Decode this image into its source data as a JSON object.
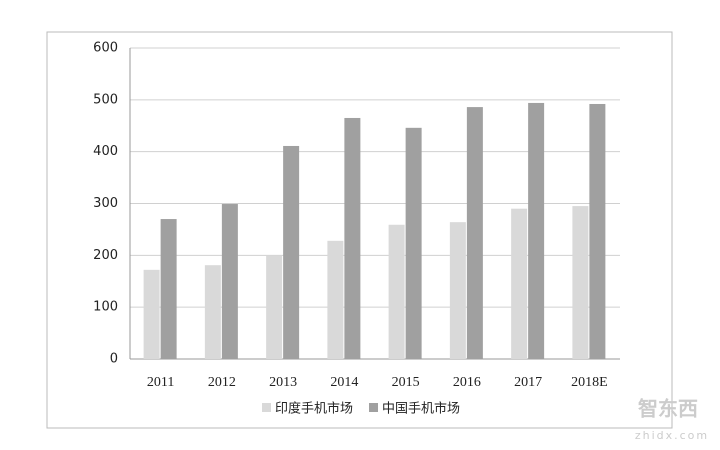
{
  "chart_data": {
    "type": "bar",
    "categories": [
      "2011",
      "2012",
      "2013",
      "2014",
      "2015",
      "2016",
      "2017",
      "2018E"
    ],
    "series": [
      {
        "name": "印度手机市场",
        "color": "#d9d9d9",
        "values": [
          172,
          181,
          200,
          228,
          259,
          264,
          290,
          295
        ]
      },
      {
        "name": "中国手机市场",
        "color": "#a0a0a0",
        "values": [
          270,
          299,
          411,
          465,
          446,
          486,
          494,
          492
        ]
      }
    ],
    "ylim": [
      0,
      600
    ],
    "yticks": [
      0,
      100,
      200,
      300,
      400,
      500,
      600
    ],
    "grid": true,
    "legend": "bottom"
  },
  "watermark": {
    "logo": "智东西",
    "url": "zhidx.com"
  }
}
